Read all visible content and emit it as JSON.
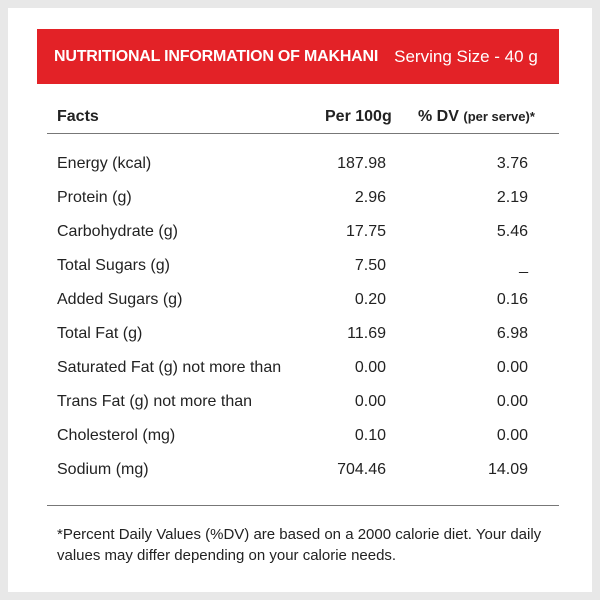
{
  "banner": {
    "title": "NUTRITIONAL INFORMATION OF MAKHANI",
    "serving": "Serving Size - 40 g",
    "color": "#e32227"
  },
  "header": {
    "facts": "Facts",
    "per100": "Per 100g",
    "dv": "% DV",
    "dv_small": "(per serve)*"
  },
  "rows": [
    {
      "fact": "Energy (kcal)",
      "per100": "187.98",
      "dv": "3.76"
    },
    {
      "fact": "Protein (g)",
      "per100": "2.96",
      "dv": "2.19"
    },
    {
      "fact": "Carbohydrate (g)",
      "per100": "17.75",
      "dv": "5.46"
    },
    {
      "fact": "Total Sugars (g)",
      "per100": "7.50",
      "dv": "_"
    },
    {
      "fact": "Added Sugars (g)",
      "per100": "0.20",
      "dv": "0.16"
    },
    {
      "fact": "Total Fat (g)",
      "per100": "11.69",
      "dv": "6.98"
    },
    {
      "fact": "Saturated Fat (g) not more than",
      "per100": "0.00",
      "dv": "0.00"
    },
    {
      "fact": "Trans Fat (g) not more than",
      "per100": "0.00",
      "dv": "0.00"
    },
    {
      "fact": "Cholesterol (mg)",
      "per100": "0.10",
      "dv": "0.00"
    },
    {
      "fact": "Sodium (mg)",
      "per100": "704.46",
      "dv": "14.09"
    }
  ],
  "footnote": "*Percent Daily Values (%DV) are based on a 2000 calorie diet. Your daily values may differ depending on your calorie needs."
}
